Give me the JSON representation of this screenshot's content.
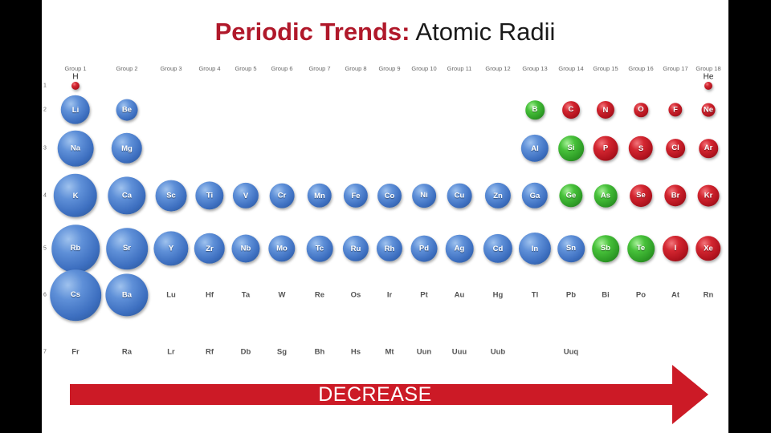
{
  "title": {
    "bold": "Periodic Trends:",
    "light": "Atomic Radii"
  },
  "groups": [
    "Group 1",
    "Group 2",
    "Group 3",
    "Group 4",
    "Group 5",
    "Group 6",
    "Group 7",
    "Group 8",
    "Group 9",
    "Group 10",
    "Group 11",
    "Group 12",
    "Group 13",
    "Group 14",
    "Group 15",
    "Group 16",
    "Group 17",
    "Group 18"
  ],
  "periods": [
    "1",
    "2",
    "3",
    "4",
    "5",
    "6",
    "7"
  ],
  "colors": {
    "metal": "#4a7fce",
    "nonmetal": "#c41e27",
    "metalloid": "#3eb032",
    "accent": "#b0182a"
  },
  "elements": [
    {
      "symbol": "H",
      "period": 1,
      "group": 1,
      "radius": 37,
      "type": "red",
      "label_above": true
    },
    {
      "symbol": "He",
      "period": 1,
      "group": 18,
      "radius": 32,
      "type": "red",
      "label_above": true
    },
    {
      "symbol": "Li",
      "period": 2,
      "group": 1,
      "radius": 152,
      "type": "blue"
    },
    {
      "symbol": "Be",
      "period": 2,
      "group": 2,
      "radius": 112,
      "type": "blue"
    },
    {
      "symbol": "B",
      "period": 2,
      "group": 13,
      "radius": 98,
      "type": "green"
    },
    {
      "symbol": "C",
      "period": 2,
      "group": 14,
      "radius": 91,
      "type": "red"
    },
    {
      "symbol": "N",
      "period": 2,
      "group": 15,
      "radius": 92,
      "type": "red"
    },
    {
      "symbol": "O",
      "period": 2,
      "group": 16,
      "radius": 73,
      "type": "red"
    },
    {
      "symbol": "F",
      "period": 2,
      "group": 17,
      "radius": 72,
      "type": "red"
    },
    {
      "symbol": "Ne",
      "period": 2,
      "group": 18,
      "radius": 70,
      "type": "red"
    },
    {
      "symbol": "Na",
      "period": 3,
      "group": 1,
      "radius": 186,
      "type": "blue"
    },
    {
      "symbol": "Mg",
      "period": 3,
      "group": 2,
      "radius": 160,
      "type": "blue"
    },
    {
      "symbol": "Al",
      "period": 3,
      "group": 13,
      "radius": 143,
      "type": "blue"
    },
    {
      "symbol": "Si",
      "period": 3,
      "group": 14,
      "radius": 132,
      "type": "green"
    },
    {
      "symbol": "P",
      "period": 3,
      "group": 15,
      "radius": 128,
      "type": "red"
    },
    {
      "symbol": "S",
      "period": 3,
      "group": 16,
      "radius": 127,
      "type": "red"
    },
    {
      "symbol": "Cl",
      "period": 3,
      "group": 17,
      "radius": 99,
      "type": "red"
    },
    {
      "symbol": "Ar",
      "period": 3,
      "group": 18,
      "radius": 98,
      "type": "red"
    },
    {
      "symbol": "K",
      "period": 4,
      "group": 1,
      "radius": 227,
      "type": "blue"
    },
    {
      "symbol": "Ca",
      "period": 4,
      "group": 2,
      "radius": 197,
      "type": "blue"
    },
    {
      "symbol": "Sc",
      "period": 4,
      "group": 3,
      "radius": 162,
      "type": "blue"
    },
    {
      "symbol": "Ti",
      "period": 4,
      "group": 4,
      "radius": 147,
      "type": "blue"
    },
    {
      "symbol": "V",
      "period": 4,
      "group": 5,
      "radius": 134,
      "type": "blue"
    },
    {
      "symbol": "Cr",
      "period": 4,
      "group": 6,
      "radius": 128,
      "type": "blue"
    },
    {
      "symbol": "Mn",
      "period": 4,
      "group": 7,
      "radius": 127,
      "type": "blue"
    },
    {
      "symbol": "Fe",
      "period": 4,
      "group": 8,
      "radius": 126,
      "type": "blue"
    },
    {
      "symbol": "Co",
      "period": 4,
      "group": 9,
      "radius": 125,
      "type": "blue"
    },
    {
      "symbol": "Ni",
      "period": 4,
      "group": 10,
      "radius": 124,
      "type": "blue"
    },
    {
      "symbol": "Cu",
      "period": 4,
      "group": 11,
      "radius": 128,
      "type": "blue"
    },
    {
      "symbol": "Zn",
      "period": 4,
      "group": 12,
      "radius": 134,
      "type": "blue"
    },
    {
      "symbol": "Ga",
      "period": 4,
      "group": 13,
      "radius": 135,
      "type": "blue"
    },
    {
      "symbol": "Ge",
      "period": 4,
      "group": 14,
      "radius": 122,
      "type": "green"
    },
    {
      "symbol": "As",
      "period": 4,
      "group": 15,
      "radius": 119,
      "type": "green"
    },
    {
      "symbol": "Se",
      "period": 4,
      "group": 16,
      "radius": 116,
      "type": "red"
    },
    {
      "symbol": "Br",
      "period": 4,
      "group": 17,
      "radius": 114,
      "type": "red"
    },
    {
      "symbol": "Kr",
      "period": 4,
      "group": 18,
      "radius": 112,
      "type": "red"
    },
    {
      "symbol": "Rb",
      "period": 5,
      "group": 1,
      "radius": 248,
      "type": "blue"
    },
    {
      "symbol": "Sr",
      "period": 5,
      "group": 2,
      "radius": 215,
      "type": "blue"
    },
    {
      "symbol": "Y",
      "period": 5,
      "group": 3,
      "radius": 180,
      "type": "blue"
    },
    {
      "symbol": "Zr",
      "period": 5,
      "group": 4,
      "radius": 160,
      "type": "blue"
    },
    {
      "symbol": "Nb",
      "period": 5,
      "group": 5,
      "radius": 146,
      "type": "blue"
    },
    {
      "symbol": "Mo",
      "period": 5,
      "group": 6,
      "radius": 139,
      "type": "blue"
    },
    {
      "symbol": "Tc",
      "period": 5,
      "group": 7,
      "radius": 136,
      "type": "blue"
    },
    {
      "symbol": "Ru",
      "period": 5,
      "group": 8,
      "radius": 134,
      "type": "blue"
    },
    {
      "symbol": "Rh",
      "period": 5,
      "group": 9,
      "radius": 134,
      "type": "blue"
    },
    {
      "symbol": "Pd",
      "period": 5,
      "group": 10,
      "radius": 137,
      "type": "blue"
    },
    {
      "symbol": "Ag",
      "period": 5,
      "group": 11,
      "radius": 144,
      "type": "blue"
    },
    {
      "symbol": "Cd",
      "period": 5,
      "group": 12,
      "radius": 151,
      "type": "blue"
    },
    {
      "symbol": "In",
      "period": 5,
      "group": 13,
      "radius": 167,
      "type": "blue"
    },
    {
      "symbol": "Sn",
      "period": 5,
      "group": 14,
      "radius": 140,
      "type": "blue"
    },
    {
      "symbol": "Sb",
      "period": 5,
      "group": 15,
      "radius": 140,
      "type": "green"
    },
    {
      "symbol": "Te",
      "period": 5,
      "group": 16,
      "radius": 140,
      "type": "green"
    },
    {
      "symbol": "I",
      "period": 5,
      "group": 17,
      "radius": 133,
      "type": "red"
    },
    {
      "symbol": "Xe",
      "period": 5,
      "group": 18,
      "radius": 131,
      "type": "red"
    },
    {
      "symbol": "Cs",
      "period": 6,
      "group": 1,
      "radius": 265,
      "type": "blue"
    },
    {
      "symbol": "Ba",
      "period": 6,
      "group": 2,
      "radius": 222,
      "type": "blue"
    }
  ],
  "plain_symbols": [
    {
      "symbol": "Lu",
      "period": 6,
      "group": 3
    },
    {
      "symbol": "Hf",
      "period": 6,
      "group": 4
    },
    {
      "symbol": "Ta",
      "period": 6,
      "group": 5
    },
    {
      "symbol": "W",
      "period": 6,
      "group": 6
    },
    {
      "symbol": "Re",
      "period": 6,
      "group": 7
    },
    {
      "symbol": "Os",
      "period": 6,
      "group": 8
    },
    {
      "symbol": "Ir",
      "period": 6,
      "group": 9
    },
    {
      "symbol": "Pt",
      "period": 6,
      "group": 10
    },
    {
      "symbol": "Au",
      "period": 6,
      "group": 11
    },
    {
      "symbol": "Hg",
      "period": 6,
      "group": 12
    },
    {
      "symbol": "Tl",
      "period": 6,
      "group": 13
    },
    {
      "symbol": "Pb",
      "period": 6,
      "group": 14
    },
    {
      "symbol": "Bi",
      "period": 6,
      "group": 15
    },
    {
      "symbol": "Po",
      "period": 6,
      "group": 16
    },
    {
      "symbol": "At",
      "period": 6,
      "group": 17
    },
    {
      "symbol": "Rn",
      "period": 6,
      "group": 18
    },
    {
      "symbol": "Fr",
      "period": 7,
      "group": 1
    },
    {
      "symbol": "Ra",
      "period": 7,
      "group": 2
    },
    {
      "symbol": "Lr",
      "period": 7,
      "group": 3
    },
    {
      "symbol": "Rf",
      "period": 7,
      "group": 4
    },
    {
      "symbol": "Db",
      "period": 7,
      "group": 5
    },
    {
      "symbol": "Sg",
      "period": 7,
      "group": 6
    },
    {
      "symbol": "Bh",
      "period": 7,
      "group": 7
    },
    {
      "symbol": "Hs",
      "period": 7,
      "group": 8
    },
    {
      "symbol": "Mt",
      "period": 7,
      "group": 9
    },
    {
      "symbol": "Uun",
      "period": 7,
      "group": 10
    },
    {
      "symbol": "Uuu",
      "period": 7,
      "group": 11
    },
    {
      "symbol": "Uub",
      "period": 7,
      "group": 12
    },
    {
      "symbol": "Uuq",
      "period": 7,
      "group": 14
    }
  ],
  "arrow": {
    "label": "DECREASE",
    "direction": "right"
  }
}
